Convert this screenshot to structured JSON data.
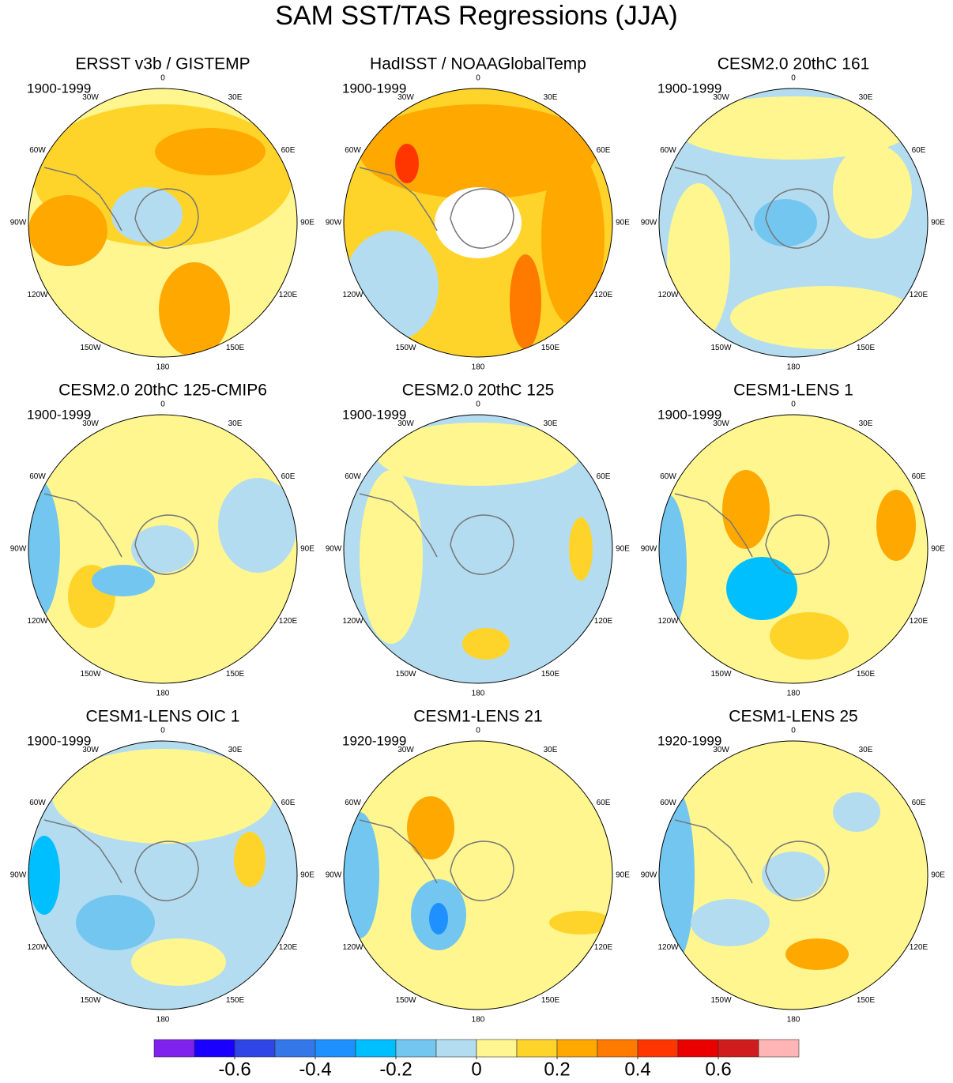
{
  "title": "SAM SST/TAS Regressions (JJA)",
  "panels": [
    {
      "title": "ERSST v3b / GISTEMP",
      "period": "1900-1999"
    },
    {
      "title": "HadISST / NOAAGlobalTemp",
      "period": "1900-1999"
    },
    {
      "title": "CESM2.0 20thC 161",
      "period": "1900-1999"
    },
    {
      "title": "CESM2.0 20thC 125-CMIP6",
      "period": "1900-1999"
    },
    {
      "title": "CESM2.0 20thC 125",
      "period": "1900-1999"
    },
    {
      "title": "CESM1-LENS 1",
      "period": "1900-1999"
    },
    {
      "title": "CESM1-LENS OIC 1",
      "period": "1900-1999"
    },
    {
      "title": "CESM1-LENS 21",
      "period": "1920-1999"
    },
    {
      "title": "CESM1-LENS 25",
      "period": "1920-1999"
    }
  ],
  "longitude_labels": [
    "0",
    "30E",
    "60E",
    "90E",
    "120E",
    "150E",
    "180",
    "150W",
    "120W",
    "90W",
    "60W",
    "30W"
  ],
  "colorbar": {
    "lim": [
      -0.8,
      0.8
    ],
    "ticks": [
      -0.6,
      -0.4,
      -0.2,
      0,
      0.2,
      0.4,
      0.6
    ],
    "colors": [
      "#7f22ee",
      "#1a00ff",
      "#2f45e6",
      "#3377e8",
      "#1e90ff",
      "#00bfff",
      "#73c6ef",
      "#b3dcf0",
      "#fff68f",
      "#ffd42a",
      "#ffa800",
      "#ff7b00",
      "#ff3600",
      "#eb0000",
      "#d01c1c",
      "#ffb5b5"
    ]
  }
}
